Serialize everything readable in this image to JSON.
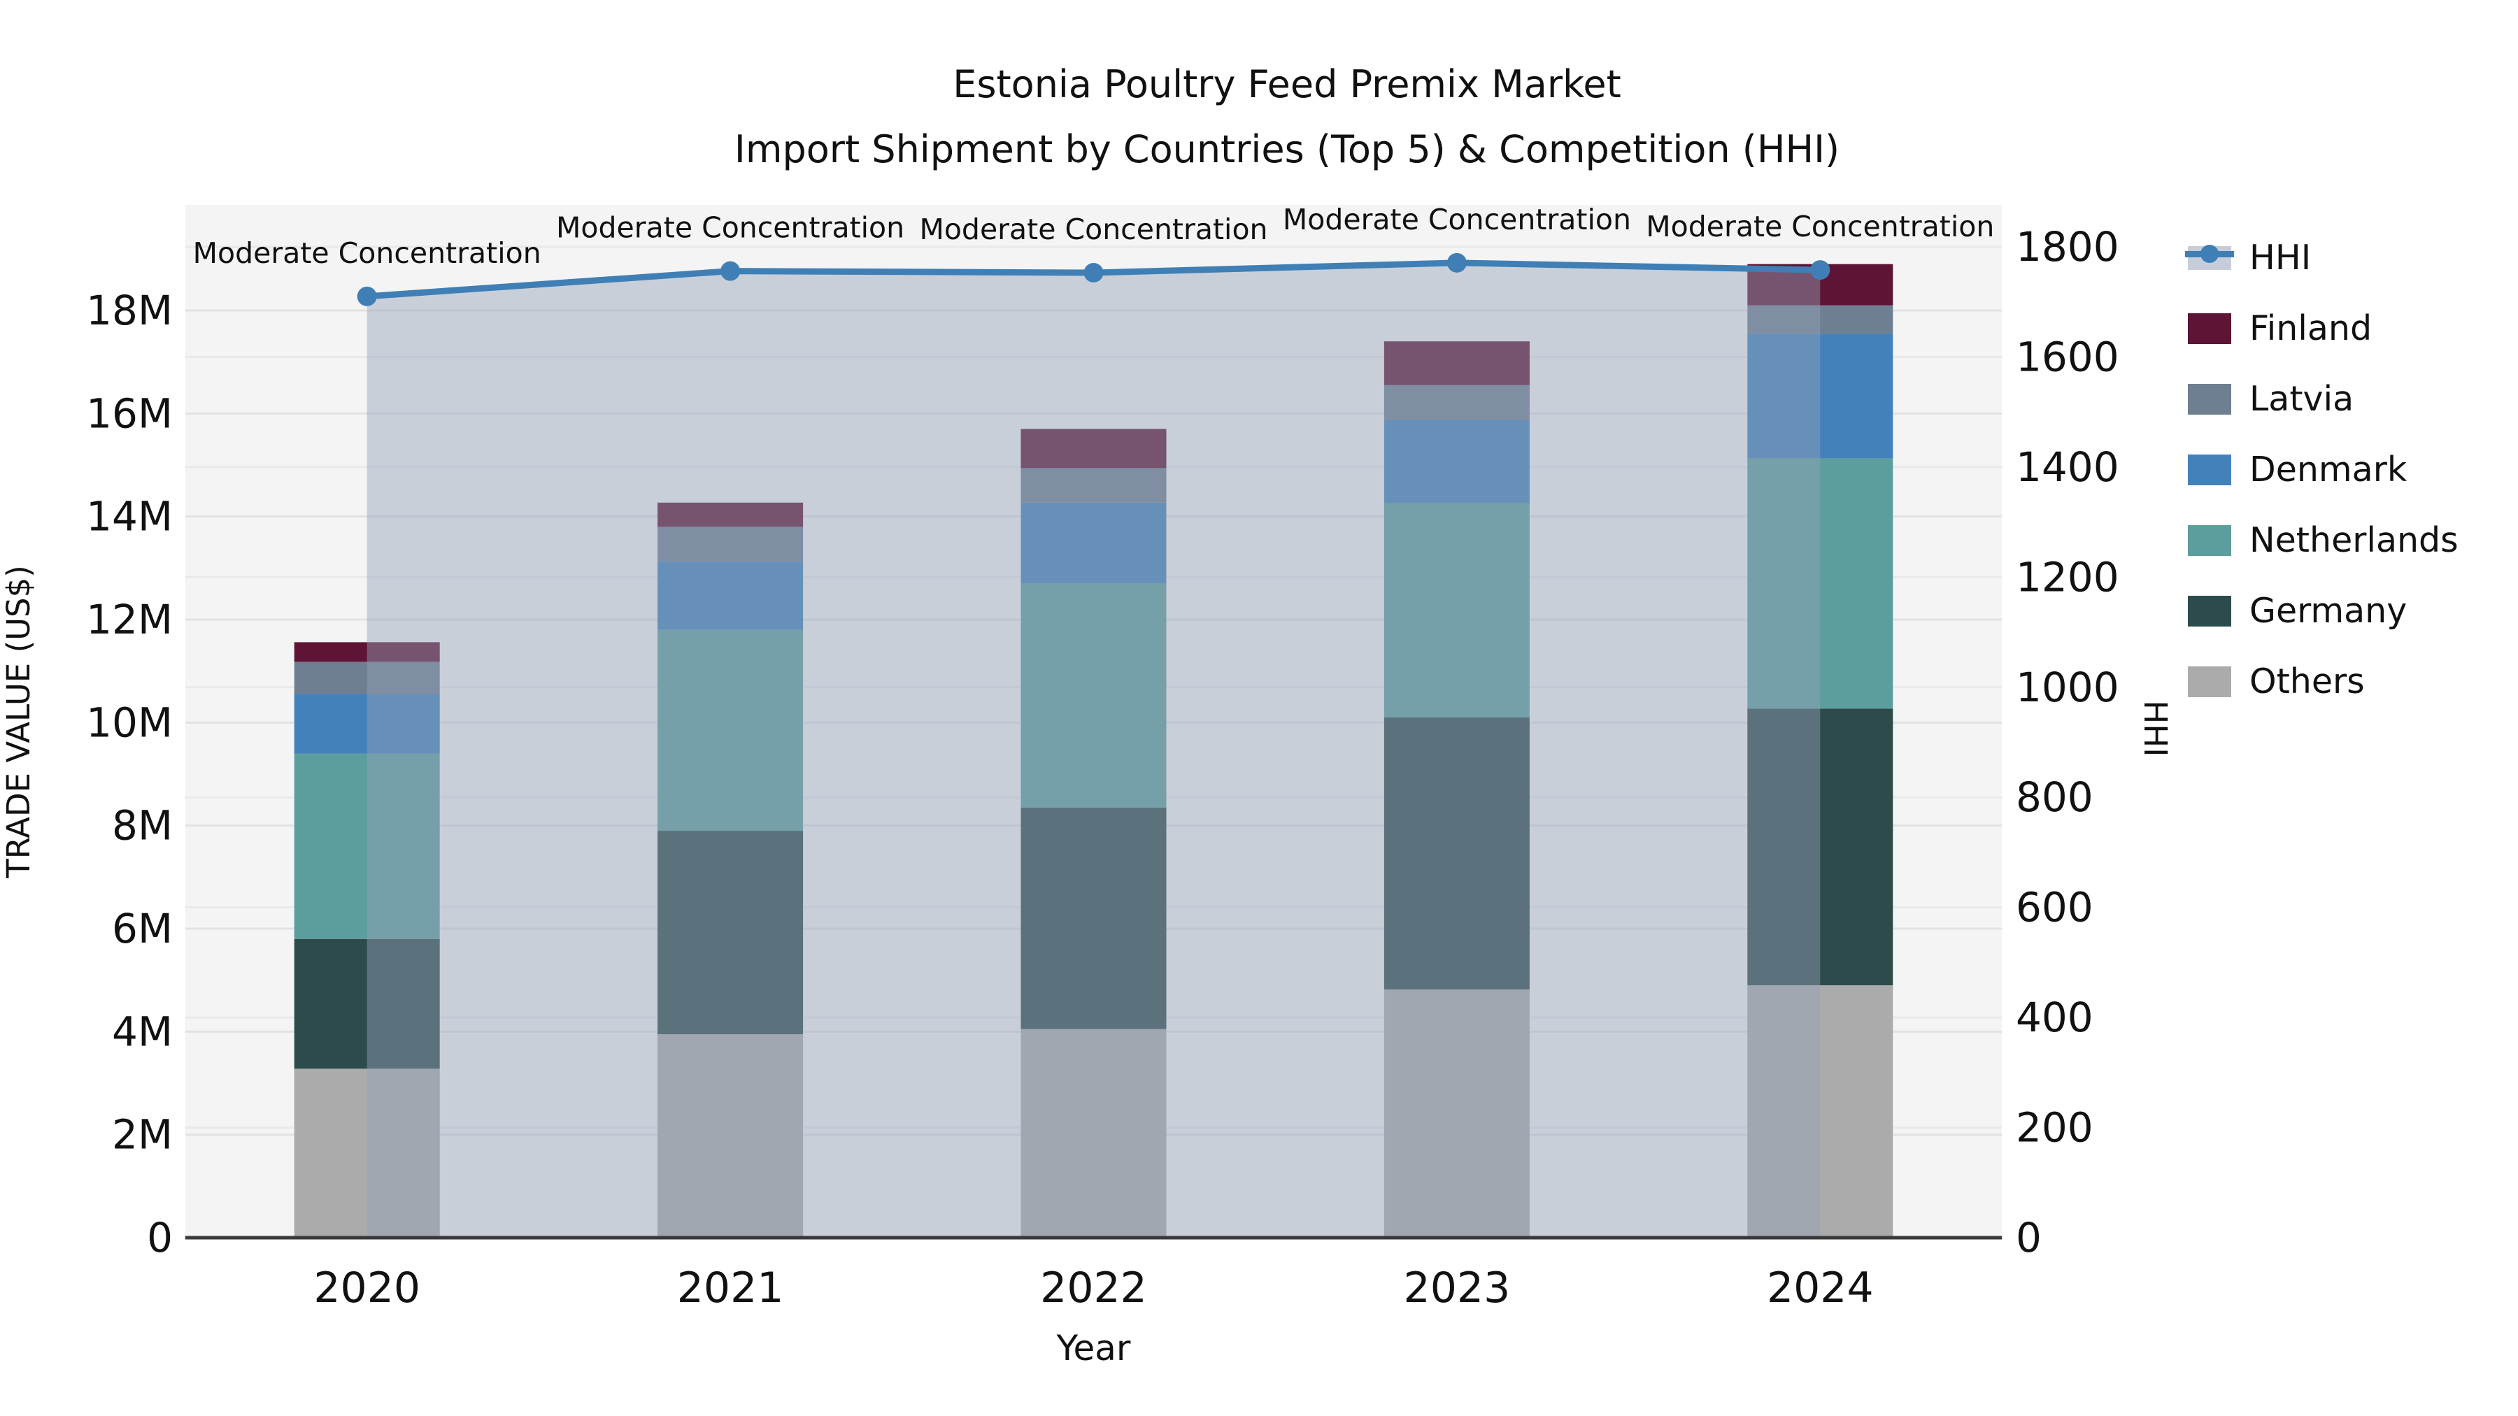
{
  "title": {
    "line1": "Estonia Poultry Feed Premix Market",
    "line2": "Import Shipment by Countries (Top 5) & Competition (HHI)"
  },
  "axes": {
    "y_left_label": "TRADE VALUE (US$)",
    "y_right_label": "HHI",
    "x_label": "Year",
    "y_left_tick_labels": [
      "0",
      "2M",
      "4M",
      "6M",
      "8M",
      "10M",
      "12M",
      "14M",
      "16M",
      "18M"
    ],
    "y_left_tick_values": [
      0,
      2,
      4,
      6,
      8,
      10,
      12,
      14,
      16,
      18
    ],
    "y_right_tick_labels": [
      "0",
      "200",
      "400",
      "600",
      "800",
      "1000",
      "1200",
      "1400",
      "1600",
      "1800"
    ],
    "y_right_tick_values": [
      0,
      200,
      400,
      600,
      800,
      1000,
      1200,
      1400,
      1600,
      1800
    ]
  },
  "legend": {
    "items": [
      {
        "label": "HHI",
        "type": "line",
        "color": "#3f7fb5"
      },
      {
        "label": "Finland",
        "type": "patch",
        "color": "#5e1435"
      },
      {
        "label": "Latvia",
        "type": "patch",
        "color": "#6e7f91"
      },
      {
        "label": "Denmark",
        "type": "patch",
        "color": "#4381bb"
      },
      {
        "label": "Netherlands",
        "type": "patch",
        "color": "#5c9e9d"
      },
      {
        "label": "Germany",
        "type": "patch",
        "color": "#2d4b4b"
      },
      {
        "label": "Others",
        "type": "patch",
        "color": "#ababab"
      }
    ]
  },
  "colors": {
    "plot_background": "#f4f4f5",
    "grid_left": "#e2e2e4",
    "grid_right": "#e9e9eb",
    "axis_spine": "#3a3a3a",
    "hhi_line": "#3f7fb5",
    "hhi_fill": "rgba(148,162,184,0.45)",
    "text": "#111111"
  },
  "chart_data": {
    "type": "bar",
    "subtype": "stacked-bars-with-line-area-overlay",
    "title": "Estonia Poultry Feed Premix Market — Import Shipment by Countries (Top 5) & Competition (HHI)",
    "xlabel": "Year",
    "ylabel_left": "TRADE VALUE (US$)",
    "ylabel_right": "HHI",
    "categories": [
      "2020",
      "2021",
      "2022",
      "2023",
      "2024"
    ],
    "unit": "Million US$",
    "series": [
      {
        "name": "Others",
        "color": "#ababab",
        "values": [
          3.28,
          3.95,
          4.05,
          4.82,
          4.9
        ]
      },
      {
        "name": "Germany",
        "color": "#2d4b4b",
        "values": [
          2.52,
          3.95,
          4.3,
          5.28,
          5.37
        ]
      },
      {
        "name": "Netherlands",
        "color": "#5c9e9d",
        "values": [
          3.6,
          3.9,
          4.35,
          4.16,
          4.86
        ]
      },
      {
        "name": "Denmark",
        "color": "#4381bb",
        "values": [
          1.16,
          1.33,
          1.57,
          1.61,
          2.42
        ]
      },
      {
        "name": "Latvia",
        "color": "#6e7f91",
        "values": [
          0.62,
          0.67,
          0.67,
          0.68,
          0.55
        ]
      },
      {
        "name": "Finland",
        "color": "#5e1435",
        "values": [
          0.38,
          0.47,
          0.76,
          0.85,
          0.8
        ]
      }
    ],
    "bar_totals": [
      11.56,
      14.27,
      15.7,
      17.4,
      18.9
    ],
    "line_series": {
      "name": "HHI",
      "axis": "right",
      "color": "#3f7fb5",
      "values": [
        1710,
        1756,
        1753,
        1771,
        1758
      ],
      "area_fill_from": "2020",
      "area_fill_to": "2024"
    },
    "annotations": [
      {
        "x": "2020",
        "text": "Moderate Concentration"
      },
      {
        "x": "2021",
        "text": "Moderate Concentration"
      },
      {
        "x": "2022",
        "text": "Moderate Concentration"
      },
      {
        "x": "2023",
        "text": "Moderate Concentration"
      },
      {
        "x": "2024",
        "text": "Moderate Concentration"
      }
    ],
    "ylim_left_millions": [
      0,
      20.05
    ],
    "ylim_right": [
      0,
      1876
    ],
    "grid": true,
    "legend_position": "right"
  }
}
